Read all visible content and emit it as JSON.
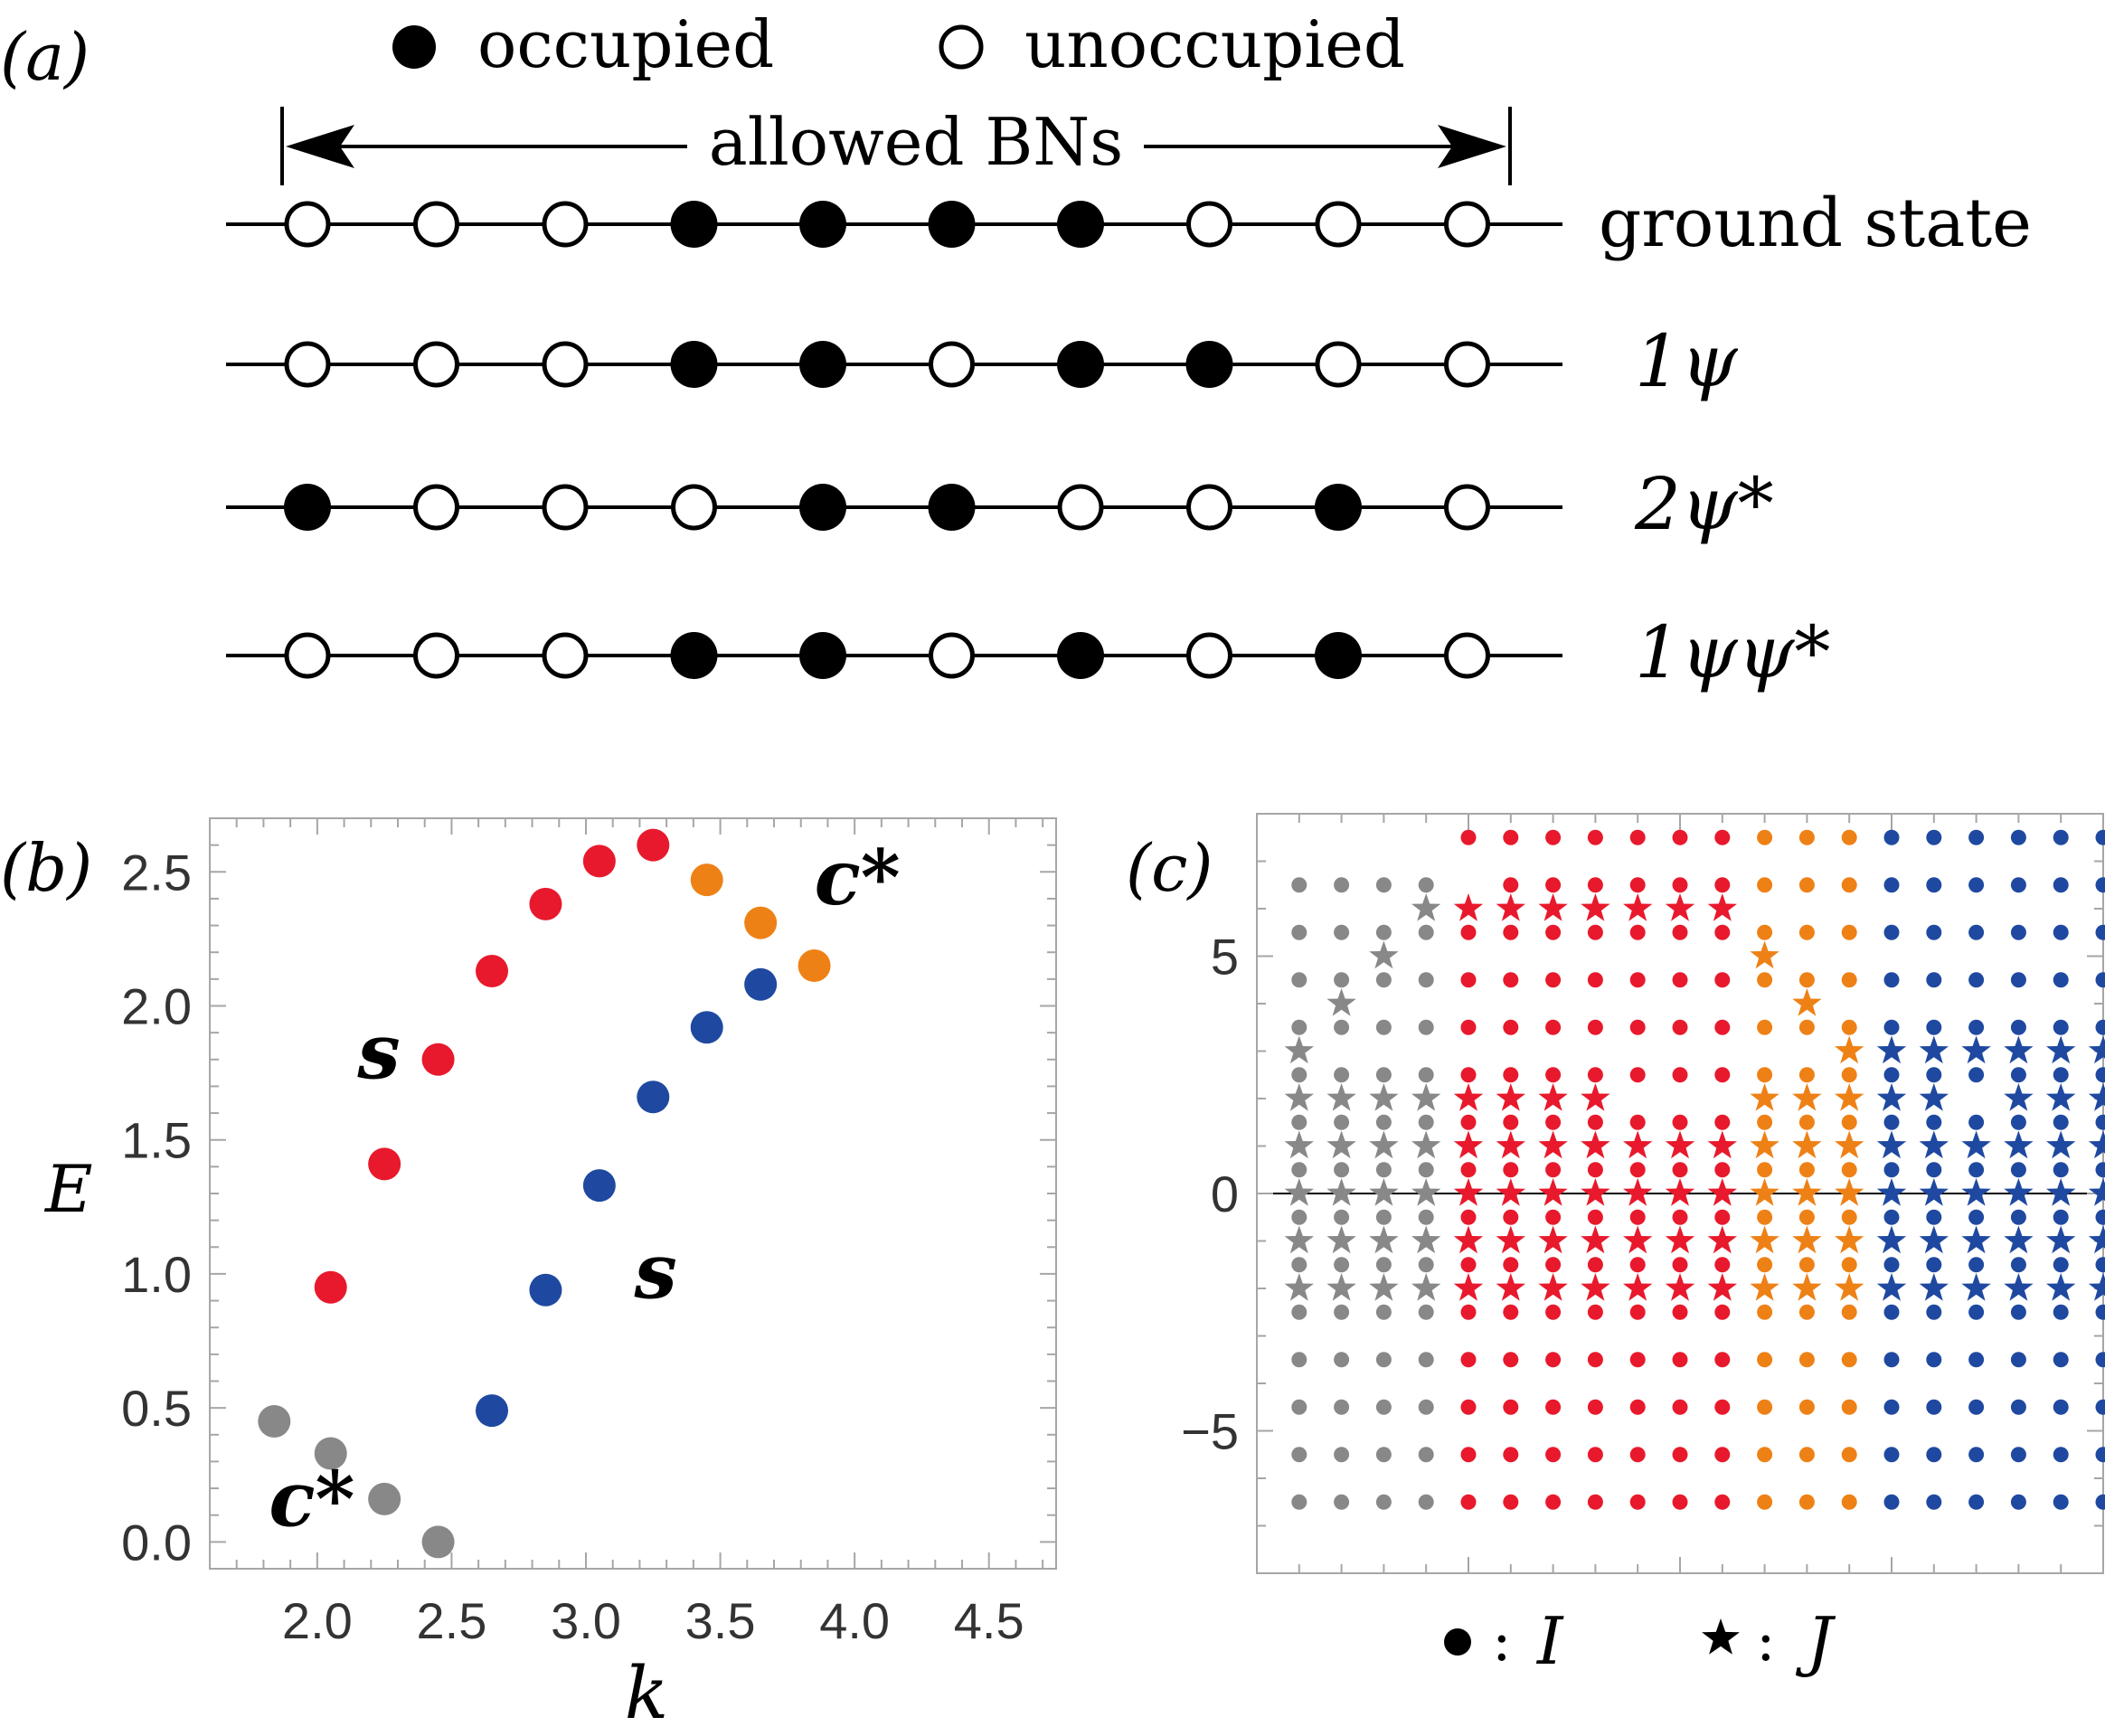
{
  "panel_a": {
    "label": "(a)",
    "legend": {
      "occupied": "occupied",
      "unoccupied": "unoccupied"
    },
    "allowed_label": "allowed BNs",
    "rows": [
      {
        "label": "ground state",
        "pattern": [
          0,
          0,
          0,
          1,
          1,
          1,
          1,
          0,
          0,
          0
        ]
      },
      {
        "label": "1ψ",
        "pattern": [
          0,
          0,
          0,
          1,
          1,
          0,
          1,
          1,
          0,
          0
        ]
      },
      {
        "label": "2ψ*",
        "pattern": [
          1,
          0,
          0,
          0,
          1,
          1,
          0,
          0,
          1,
          0
        ]
      },
      {
        "label": "1ψψ*",
        "pattern": [
          0,
          0,
          0,
          1,
          1,
          0,
          1,
          0,
          1,
          0
        ]
      }
    ]
  },
  "colors": {
    "gray": "#888888",
    "red": "#e8192c",
    "orange": "#ee8116",
    "blue": "#1f49a0"
  },
  "chart_data": [
    {
      "type": "scatter",
      "panel_label": "(b)",
      "xlabel": "k",
      "ylabel": "E",
      "xlim": [
        1.6,
        4.75
      ],
      "ylim": [
        -0.1,
        2.7
      ],
      "x_ticks": [
        "2.0",
        "2.5",
        "3.0",
        "3.5",
        "4.0",
        "4.5"
      ],
      "x_tick_values": [
        2.0,
        2.5,
        3.0,
        3.5,
        4.0,
        4.5
      ],
      "y_ticks": [
        "0.0",
        "0.5",
        "1.0",
        "1.5",
        "2.0",
        "2.5"
      ],
      "y_tick_values": [
        0.0,
        0.5,
        1.0,
        1.5,
        2.0,
        2.5
      ],
      "annotations": [
        {
          "text": "s",
          "x": 2.15,
          "y": 1.73
        },
        {
          "text": "s",
          "x": 3.18,
          "y": 0.91
        },
        {
          "text": "c*",
          "x": 1.82,
          "y": 0.06
        },
        {
          "text": "c*",
          "x": 3.85,
          "y": 2.38
        }
      ],
      "series": [
        {
          "color_key": "gray",
          "x": [
            1.84,
            2.05,
            2.25,
            2.45
          ],
          "y": [
            0.45,
            0.33,
            0.16,
            0.0
          ]
        },
        {
          "color_key": "red",
          "x": [
            2.05,
            2.25,
            2.45,
            2.65,
            2.85,
            3.05,
            3.25
          ],
          "y": [
            0.95,
            1.41,
            1.8,
            2.13,
            2.38,
            2.54,
            2.6
          ]
        },
        {
          "color_key": "blue",
          "x": [
            2.65,
            2.85,
            3.05,
            3.25,
            3.45,
            3.65
          ],
          "y": [
            0.49,
            0.94,
            1.33,
            1.66,
            1.92,
            2.08
          ]
        },
        {
          "color_key": "orange",
          "x": [
            3.45,
            3.65,
            3.85
          ],
          "y": [
            2.47,
            2.31,
            2.15
          ]
        }
      ]
    },
    {
      "type": "scatter",
      "panel_label": "(c)",
      "xlim": [
        0,
        20
      ],
      "ylim": [
        -8,
        8
      ],
      "y_ticks": [
        "5",
        "0",
        "−5"
      ],
      "y_tick_values": [
        5,
        0,
        -5
      ],
      "legend": {
        "dot": ":",
        "dot_symbol": "I",
        "star": ":",
        "star_symbol": "J"
      },
      "columns": [
        {
          "x": 1,
          "color_key": "gray",
          "dots": [
            6.5,
            5.5,
            4.5,
            3.5,
            2.5,
            1.5,
            0.5,
            -0.5,
            -1.5,
            -2.5,
            -3.5,
            -4.5,
            -5.5,
            -6.5
          ],
          "stars": [
            3,
            2,
            1,
            0,
            -1,
            -2
          ]
        },
        {
          "x": 2,
          "color_key": "gray",
          "dots": [
            6.5,
            5.5,
            4.5,
            3.5,
            2.5,
            1.5,
            0.5,
            -0.5,
            -1.5,
            -2.5,
            -3.5,
            -4.5,
            -5.5,
            -6.5
          ],
          "stars": [
            4,
            2,
            1,
            0,
            -1,
            -2
          ]
        },
        {
          "x": 3,
          "color_key": "gray",
          "dots": [
            6.5,
            5.5,
            4.5,
            3.5,
            2.5,
            1.5,
            0.5,
            -0.5,
            -1.5,
            -2.5,
            -3.5,
            -4.5,
            -5.5,
            -6.5
          ],
          "stars": [
            5,
            2,
            1,
            0,
            -1,
            -2
          ]
        },
        {
          "x": 4,
          "color_key": "gray",
          "dots": [
            6.5,
            5.5,
            4.5,
            3.5,
            2.5,
            1.5,
            0.5,
            -0.5,
            -1.5,
            -2.5,
            -3.5,
            -4.5,
            -5.5,
            -6.5
          ],
          "stars": [
            6,
            2,
            1,
            0,
            -1,
            -2
          ]
        },
        {
          "x": 5,
          "color_key": "red",
          "dots": [
            7.5,
            5.5,
            4.5,
            3.5,
            2.5,
            1.5,
            0.5,
            -0.5,
            -1.5,
            -2.5,
            -3.5,
            -4.5,
            -5.5,
            -6.5
          ],
          "stars": [
            6,
            2,
            1,
            0,
            -1,
            -2
          ]
        },
        {
          "x": 6,
          "color_key": "red",
          "dots": [
            7.5,
            6.5,
            5.5,
            4.5,
            3.5,
            2.5,
            1.5,
            0.5,
            -0.5,
            -1.5,
            -2.5,
            -3.5,
            -4.5,
            -5.5,
            -6.5
          ],
          "stars": [
            6,
            2,
            1,
            0,
            -1,
            -2
          ]
        },
        {
          "x": 7,
          "color_key": "red",
          "dots": [
            7.5,
            6.5,
            5.5,
            4.5,
            3.5,
            2.5,
            1.5,
            0.5,
            -0.5,
            -1.5,
            -2.5,
            -3.5,
            -4.5,
            -5.5,
            -6.5
          ],
          "stars": [
            6,
            2,
            1,
            0,
            -1,
            -2
          ]
        },
        {
          "x": 8,
          "color_key": "red",
          "dots": [
            7.5,
            6.5,
            5.5,
            4.5,
            3.5,
            2.5,
            1.5,
            0.5,
            -0.5,
            -1.5,
            -2.5,
            -3.5,
            -4.5,
            -5.5,
            -6.5
          ],
          "stars": [
            6,
            2,
            1,
            0,
            -1,
            -2
          ]
        },
        {
          "x": 9,
          "color_key": "red",
          "dots": [
            7.5,
            6.5,
            5.5,
            4.5,
            3.5,
            2.5,
            1.5,
            0.5,
            -0.5,
            -1.5,
            -2.5,
            -3.5,
            -4.5,
            -5.5,
            -6.5
          ],
          "stars": [
            6,
            1,
            0,
            -1,
            -2
          ]
        },
        {
          "x": 10,
          "color_key": "red",
          "dots": [
            7.5,
            6.5,
            5.5,
            4.5,
            3.5,
            2.5,
            1.5,
            0.5,
            -0.5,
            -1.5,
            -2.5,
            -3.5,
            -4.5,
            -5.5,
            -6.5
          ],
          "stars": [
            6,
            1,
            0,
            -1,
            -2
          ]
        },
        {
          "x": 11,
          "color_key": "red",
          "dots": [
            7.5,
            6.5,
            5.5,
            4.5,
            3.5,
            2.5,
            1.5,
            0.5,
            -0.5,
            -1.5,
            -2.5,
            -3.5,
            -4.5,
            -5.5,
            -6.5
          ],
          "stars": [
            6,
            1,
            0,
            -1,
            -2
          ]
        },
        {
          "x": 12,
          "color_key": "orange",
          "dots": [
            7.5,
            6.5,
            5.5,
            4.5,
            3.5,
            2.5,
            1.5,
            0.5,
            -0.5,
            -1.5,
            -2.5,
            -3.5,
            -4.5,
            -5.5,
            -6.5
          ],
          "stars": [
            5,
            2,
            1,
            0,
            -1,
            -2
          ]
        },
        {
          "x": 13,
          "color_key": "orange",
          "dots": [
            7.5,
            6.5,
            5.5,
            4.5,
            3.5,
            2.5,
            1.5,
            0.5,
            -0.5,
            -1.5,
            -2.5,
            -3.5,
            -4.5,
            -5.5,
            -6.5
          ],
          "stars": [
            4,
            2,
            1,
            0,
            -1,
            -2
          ]
        },
        {
          "x": 14,
          "color_key": "orange",
          "dots": [
            7.5,
            6.5,
            5.5,
            4.5,
            3.5,
            2.5,
            1.5,
            0.5,
            -0.5,
            -1.5,
            -2.5,
            -3.5,
            -4.5,
            -5.5,
            -6.5
          ],
          "stars": [
            3,
            2,
            1,
            0,
            -1,
            -2
          ]
        },
        {
          "x": 15,
          "color_key": "blue",
          "dots": [
            7.5,
            6.5,
            5.5,
            4.5,
            3.5,
            2.5,
            1.5,
            0.5,
            -0.5,
            -1.5,
            -2.5,
            -3.5,
            -4.5,
            -5.5,
            -6.5
          ],
          "stars": [
            3,
            2,
            1,
            0,
            -1,
            -2
          ]
        },
        {
          "x": 16,
          "color_key": "blue",
          "dots": [
            7.5,
            6.5,
            5.5,
            4.5,
            3.5,
            2.5,
            1.5,
            0.5,
            -0.5,
            -1.5,
            -2.5,
            -3.5,
            -4.5,
            -5.5,
            -6.5
          ],
          "stars": [
            3,
            2,
            1,
            0,
            -1,
            -2
          ]
        },
        {
          "x": 17,
          "color_key": "blue",
          "dots": [
            7.5,
            6.5,
            5.5,
            4.5,
            3.5,
            2.5,
            1.5,
            0.5,
            -0.5,
            -1.5,
            -2.5,
            -3.5,
            -4.5,
            -5.5,
            -6.5
          ],
          "stars": [
            3,
            1,
            0,
            -1,
            -2
          ]
        },
        {
          "x": 18,
          "color_key": "blue",
          "dots": [
            7.5,
            6.5,
            5.5,
            4.5,
            3.5,
            2.5,
            1.5,
            0.5,
            -0.5,
            -1.5,
            -2.5,
            -3.5,
            -4.5,
            -5.5,
            -6.5
          ],
          "stars": [
            3,
            2,
            1,
            0,
            -1,
            -2
          ]
        },
        {
          "x": 19,
          "color_key": "blue",
          "dots": [
            7.5,
            6.5,
            5.5,
            4.5,
            3.5,
            2.5,
            1.5,
            0.5,
            -0.5,
            -1.5,
            -2.5,
            -3.5,
            -4.5,
            -5.5,
            -6.5
          ],
          "stars": [
            3,
            2,
            1,
            0,
            -1,
            -2
          ]
        },
        {
          "x": 20,
          "color_key": "blue",
          "dots": [
            7.5,
            6.5,
            5.5,
            4.5,
            3.5,
            2.5,
            1.5,
            0.5,
            -0.5,
            -1.5,
            -2.5,
            -3.5,
            -4.5,
            -5.5,
            -6.5
          ],
          "stars": [
            3,
            2,
            1,
            0,
            -1,
            -2
          ]
        }
      ]
    }
  ]
}
